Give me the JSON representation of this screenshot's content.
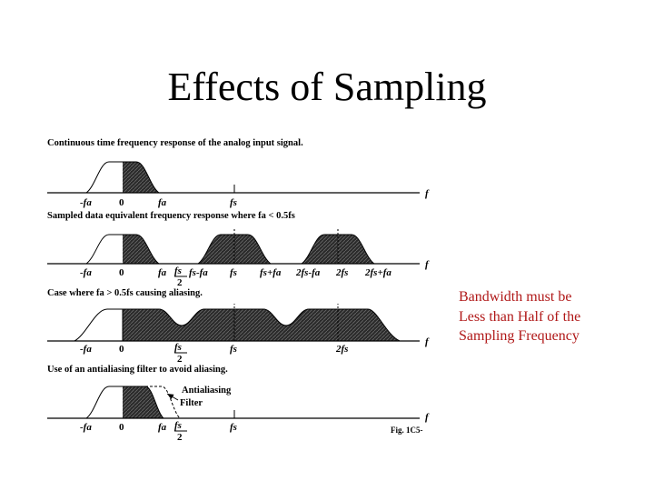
{
  "slide": {
    "title": "Effects of Sampling",
    "note_lines": [
      "Bandwidth must be",
      "Less than Half of the",
      "Sampling Frequency"
    ]
  },
  "figure": {
    "panel1": {
      "caption": "Continuous time frequency response of the analog input signal.",
      "axis": "f",
      "labels": [
        "-fa",
        "0",
        "fa",
        "fs"
      ]
    },
    "panel2": {
      "caption": "Sampled data equivalent frequency response where fa < 0.5fs",
      "axis": "f",
      "labels": [
        "-fa",
        "0",
        "fa",
        "fs",
        "fs-fa",
        "fs",
        "fs+fa",
        "2fs-fa",
        "2fs",
        "2fs+fa"
      ],
      "half_num": "fs",
      "half_den": "2"
    },
    "panel3": {
      "caption": "Case where fa > 0.5fs causing aliasing.",
      "axis": "f",
      "labels": [
        "-fa",
        "0",
        "fs",
        "fs",
        "2fs"
      ],
      "half_den": "2"
    },
    "panel4": {
      "caption": "Use of an antialiasing filter to avoid aliasing.",
      "axis": "f",
      "labels": [
        "-fa",
        "0",
        "fa",
        "fs",
        "fs"
      ],
      "half_den": "2",
      "filter_label_1": "Antialiasing",
      "filter_label_2": "Filter",
      "fig_ref": "Fig. 1C5-"
    }
  }
}
